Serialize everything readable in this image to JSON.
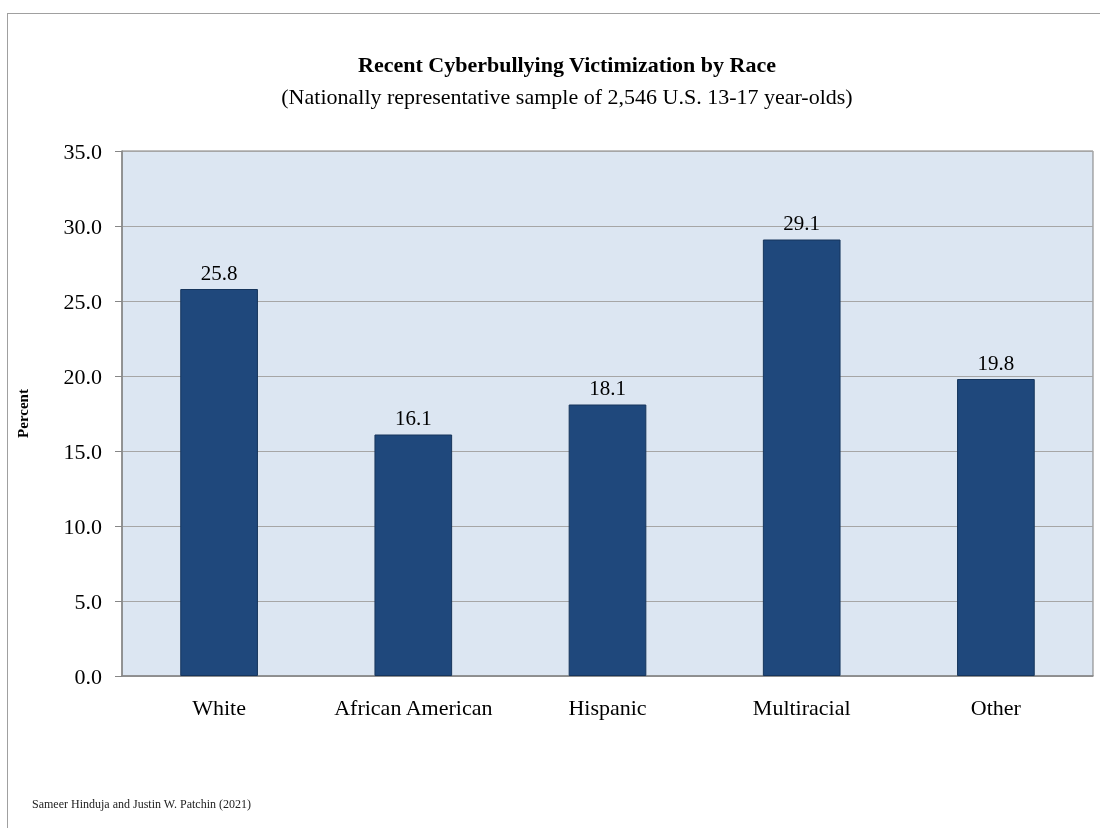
{
  "chart_data": {
    "type": "bar",
    "title": "Recent Cyberbullying Victimization by Race",
    "subtitle": "(Nationally representative sample of 2,546 U.S. 13-17 year-olds)",
    "ylabel": "Percent",
    "categories": [
      "White",
      "African American",
      "Hispanic",
      "Multiracial",
      "Other"
    ],
    "values": [
      25.8,
      16.1,
      18.1,
      29.1,
      19.8
    ],
    "color": "#1f487c",
    "ylim": [
      0,
      35
    ],
    "yticks": [
      {
        "value": 0,
        "label": "0.0"
      },
      {
        "value": 5,
        "label": "5.0"
      },
      {
        "value": 10,
        "label": "10.0"
      },
      {
        "value": 15,
        "label": "15.0"
      },
      {
        "value": 20,
        "label": "20.0"
      },
      {
        "value": 25,
        "label": "25.0"
      },
      {
        "value": 30,
        "label": "30.0"
      },
      {
        "value": 35,
        "label": "35.0"
      }
    ],
    "grid": "y",
    "data_labels": true,
    "annotations": [
      "Sameer Hinduja and Justin W. Patchin (2021)"
    ]
  }
}
